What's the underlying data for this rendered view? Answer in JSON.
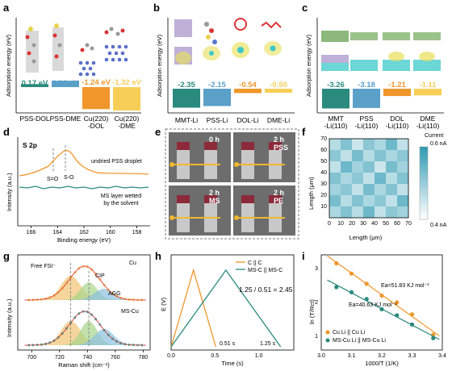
{
  "panels": {
    "a": {
      "label": "a",
      "ylabel": "Adsorption energy (eV)",
      "bars": [
        {
          "name": "PSS-DOL",
          "value": 0.17,
          "text": "0.17 eV",
          "color": "#2a8a7e"
        },
        {
          "name": "PSS-DME",
          "value": 0.36,
          "text": "0.36 eV",
          "color": "#5aa0c8"
        },
        {
          "name": "Cu(220)\n-DOL",
          "value": -1.24,
          "text": "-1.24 eV",
          "color": "#f0962a"
        },
        {
          "name": "Cu(220)\n-DME",
          "value": -1.32,
          "text": "-1.32 eV",
          "color": "#f7cf58"
        }
      ]
    },
    "b": {
      "label": "b",
      "ylabel": "Adsorption energy (eV)",
      "bars": [
        {
          "name": "MMT-Li",
          "value": -2.35,
          "text": "-2.35",
          "color": "#2a8a7e"
        },
        {
          "name": "PSS-Li",
          "value": -2.15,
          "text": "-2.15",
          "color": "#5aa0c8"
        },
        {
          "name": "DOL-Li",
          "value": -0.54,
          "text": "-0.54",
          "color": "#f0962a"
        },
        {
          "name": "DME-Li",
          "value": -0.5,
          "text": "-0.50",
          "color": "#f7cf58"
        }
      ]
    },
    "c": {
      "label": "c",
      "ylabel": "Adsorption energy (eV)",
      "bars": [
        {
          "name": "MMT\n-Li(110)",
          "value": -3.26,
          "text": "-3.26",
          "color": "#2a8a7e"
        },
        {
          "name": "PSS\n-Li(110)",
          "value": -3.18,
          "text": "-3.18",
          "color": "#5aa0c8"
        },
        {
          "name": "DOL\n-Li(110)",
          "value": -1.21,
          "text": "-1.21",
          "color": "#f0962a"
        },
        {
          "name": "DME\n-Li(110)",
          "value": -1.11,
          "text": "-1.11",
          "color": "#f7cf58"
        }
      ]
    },
    "d": {
      "label": "d",
      "title": "S 2p",
      "xlabel": "Binding energy (eV)",
      "ylabel": "Intensity (a.u.)",
      "xticks": [
        166,
        164,
        162,
        160,
        158
      ],
      "xlim": [
        167,
        157
      ],
      "peak_labels": [
        "S=O",
        "S-O"
      ],
      "series": [
        {
          "name": "undried PSS droplet",
          "color": "#f0962a"
        },
        {
          "name": "MS layer wetted\nby the solvent",
          "color": "#2a8a7e"
        }
      ]
    },
    "e": {
      "label": "e",
      "photos": [
        "0 h",
        "2 h\nPSS",
        "2 h\nMS",
        "2 h\nPE"
      ]
    },
    "f": {
      "label": "f",
      "xlabel": "Length (μm)",
      "ylabel": "Length (μm)",
      "xticks": [
        0,
        10,
        20,
        30,
        40,
        50,
        60,
        70
      ],
      "yticks": [
        10,
        20,
        30,
        40,
        50,
        60,
        70
      ],
      "colorbar": {
        "title": "Current",
        "max_label": "0.6 nA",
        "min_label": "0.4 nA",
        "colors": [
          "#ffffff",
          "#2e9ab3"
        ]
      },
      "grid": [
        [
          0.35,
          0.6,
          0.25,
          0.55,
          0.4,
          0.7,
          0.3
        ],
        [
          0.55,
          0.3,
          0.65,
          0.35,
          0.6,
          0.4,
          0.55
        ],
        [
          0.3,
          0.7,
          0.45,
          0.6,
          0.25,
          0.65,
          0.45
        ],
        [
          0.6,
          0.4,
          0.55,
          0.3,
          0.7,
          0.35,
          0.6
        ],
        [
          0.45,
          0.55,
          0.3,
          0.65,
          0.4,
          0.6,
          0.3
        ],
        [
          0.65,
          0.35,
          0.6,
          0.4,
          0.55,
          0.3,
          0.7
        ],
        [
          0.4,
          0.6,
          0.35,
          0.7,
          0.3,
          0.55,
          0.45
        ]
      ]
    },
    "g": {
      "label": "g",
      "xlabel": "Raman shift (cm⁻¹)",
      "ylabel": "Intensity (a.u.)",
      "xticks": [
        700,
        720,
        740,
        760,
        780
      ],
      "xlim": [
        690,
        785
      ],
      "species": [
        "Free FSI⁻",
        "CIP",
        "AGG"
      ],
      "samples": [
        {
          "name": "Cu",
          "color": "#f0962a"
        },
        {
          "name": "MS-Cu",
          "color": "#2a8a7e"
        }
      ]
    },
    "h": {
      "label": "h",
      "xlabel": "Time (s)",
      "ylabel": "E (V)",
      "xticks": [
        0.0,
        0.5,
        1.0
      ],
      "legend": [
        "C || C",
        "MS-C || MS-C"
      ],
      "ratio_text": "1.25 / 0.51 = 2.45",
      "annotations": [
        "0.51 s",
        "1.25 s"
      ],
      "colors": [
        "#f0962a",
        "#2a8a7e"
      ]
    },
    "i": {
      "label": "i",
      "xlabel": "1000/T (1/K)",
      "ylabel": "ln (T/Rct)",
      "xticks": [
        3.0,
        3.1,
        3.2,
        3.3,
        3.4
      ],
      "yticks": [
        1,
        2,
        3
      ],
      "xlim": [
        3.0,
        3.4
      ],
      "ylim": [
        0.6,
        3.4
      ],
      "ea_labels": [
        "Ea=51.83 KJ mol⁻¹",
        "Ea=40.63 KJ mol⁻¹"
      ],
      "series": [
        {
          "name": "Cu Li || Cu Li",
          "color": "#f0962a",
          "x": [
            3.05,
            3.1,
            3.15,
            3.2,
            3.25,
            3.3,
            3.37
          ],
          "y": [
            3.15,
            2.85,
            2.55,
            2.2,
            2.0,
            1.65,
            1.05
          ]
        },
        {
          "name": "MS-Cu Li || MS-Cu Li",
          "color": "#2a8a7e",
          "x": [
            3.05,
            3.1,
            3.15,
            3.2,
            3.25,
            3.3,
            3.37
          ],
          "y": [
            2.45,
            2.3,
            2.1,
            1.8,
            1.62,
            1.35,
            0.95
          ]
        }
      ]
    }
  }
}
